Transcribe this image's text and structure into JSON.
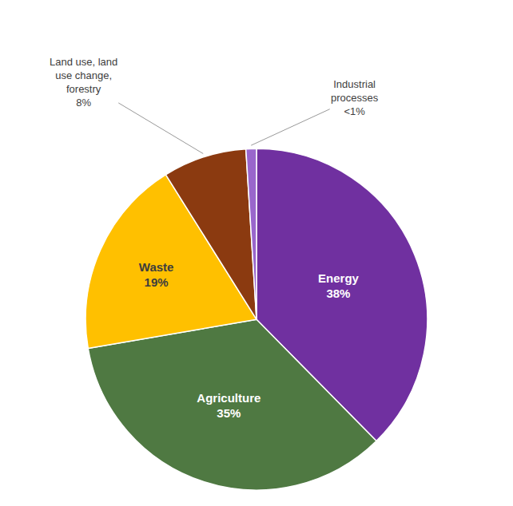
{
  "chart_data": {
    "type": "pie",
    "categories": [
      "Energy",
      "Agriculture",
      "Waste",
      "Land use, land\nuse change,\nforestry",
      "Industrial\nprocesses"
    ],
    "values": [
      38,
      35,
      19,
      8,
      1
    ],
    "value_labels": [
      "38%",
      "35%",
      "19%",
      "8%",
      "<1%"
    ],
    "colors": [
      "#7030A0",
      "#4F7942",
      "#FFC000",
      "#8B3A10",
      "#9966CC"
    ],
    "data_labels": true
  }
}
